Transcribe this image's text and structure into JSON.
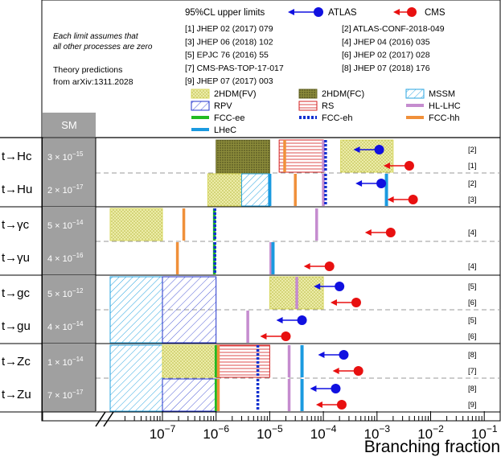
{
  "chart_data": {
    "type": "bar",
    "orientation": "horizontal",
    "x_scale": "log",
    "xlim": [
      "1e-8",
      "1e-1"
    ],
    "xlabel": "Branching fraction",
    "x_tick_labels": [
      "10^-7",
      "10^-6",
      "10^-5",
      "10^-4",
      "10^-3",
      "10^-2",
      "10^-1"
    ],
    "axis_break": true,
    "sm_header": "SM",
    "header": {
      "upper_limits_label": "95%CL upper limits",
      "atlas_label": "ATLAS",
      "cms_label": "CMS",
      "atlas_color": "#1010e0",
      "cms_color": "#e81010",
      "note_line1": "Each limit assumes that",
      "note_line2": "all other processes are zero",
      "theory_line1": "Theory predictions",
      "theory_line2": "from arXiv:1311.2028"
    },
    "references": [
      "[1] JHEP 02 (2017) 079",
      "[2] ATLAS-CONF-2018-049",
      "[3] JHEP 06 (2018) 102",
      "[4] JHEP 04 (2016) 035",
      "[5] EPJC 76 (2016) 55",
      "[6] JHEP 02 (2017) 028",
      "[7] CMS-PAS-TOP-17-017",
      "[8] JHEP 07 (2018) 176",
      "[9] JHEP 07 (2017) 003"
    ],
    "legend": [
      {
        "name": "2HDM(FV)",
        "key": "h2fv",
        "color": "#d8d860"
      },
      {
        "name": "2HDM(FC)",
        "key": "h2fc",
        "color": "#6b6b2a"
      },
      {
        "name": "MSSM",
        "key": "mssm",
        "color": "#2aa5e0"
      },
      {
        "name": "RPV",
        "key": "rpv",
        "color": "#2233cc"
      },
      {
        "name": "RS",
        "key": "rs",
        "color": "#d42020"
      },
      {
        "name": "HL-LHC",
        "key": "hllhc",
        "color": "#c58ccf"
      },
      {
        "name": "FCC-ee",
        "key": "fccee",
        "color": "#22bb22"
      },
      {
        "name": "FCC-eh",
        "key": "fcceh",
        "color": "#1030d0"
      },
      {
        "name": "FCC-hh",
        "key": "fcchh",
        "color": "#f0903a"
      },
      {
        "name": "LHeC",
        "key": "lhec",
        "color": "#1a9ae0"
      }
    ],
    "groups": [
      {
        "row_a": "t→Hc",
        "row_b": "t→Hu",
        "sm_a": "3 × 10^-15",
        "sm_b": "2 × 10^-17"
      },
      {
        "row_a": "t→γc",
        "row_b": "t→γu",
        "sm_a": "5 × 10^-14",
        "sm_b": "4 × 10^-16"
      },
      {
        "row_a": "t→gc",
        "row_b": "t→gu",
        "sm_a": "5 × 10^-12",
        "sm_b": "4 × 10^-14"
      },
      {
        "row_a": "t→Zc",
        "row_b": "t→Zu",
        "sm_a": "1 × 10^-14",
        "sm_b": "7 × 10^-17"
      }
    ],
    "theory_boxes": [
      {
        "key": "h2fc",
        "group": 0,
        "range": [
          "1e-6",
          "1e-5"
        ],
        "span": "group"
      },
      {
        "key": "h2fv",
        "group": 0,
        "range": [
          "2.1e-4",
          "2.0e-3"
        ],
        "span": "row_a"
      },
      {
        "key": "h2fv",
        "group": 0,
        "range": [
          "7e-7",
          "3e-6"
        ],
        "span": "row_b"
      },
      {
        "key": "mssm",
        "group": 0,
        "range": [
          "3e-6",
          "1e-5"
        ],
        "span": "row_b"
      },
      {
        "key": "rs",
        "group": 0,
        "range": [
          "1.5e-5",
          "1e-4"
        ],
        "span": "row_a"
      },
      {
        "key": "h2fv",
        "group": 1,
        "range": [
          "1e-8",
          "1e-7"
        ],
        "span": "row_a"
      },
      {
        "key": "mssm",
        "group": 2,
        "range": [
          "1e-8",
          "1e-7"
        ],
        "span": "group"
      },
      {
        "key": "rpv",
        "group": 2,
        "range": [
          "1e-7",
          "1e-6"
        ],
        "span": "group"
      },
      {
        "key": "h2fv",
        "group": 2,
        "range": [
          "1e-5",
          "1e-4"
        ],
        "span": "row_a"
      },
      {
        "key": "mssm",
        "group": 3,
        "range": [
          "1e-8",
          "1e-7"
        ],
        "span": "group"
      },
      {
        "key": "rpv",
        "group": 3,
        "range": [
          "1e-7",
          "1e-6"
        ],
        "span": "row_b"
      },
      {
        "key": "h2fv",
        "group": 3,
        "range": [
          "1e-7",
          "1e-6"
        ],
        "span": "row_a"
      },
      {
        "key": "rs",
        "group": 3,
        "range": [
          "1e-6",
          "1e-5"
        ],
        "span": "row_a"
      }
    ],
    "projection_lines": [
      {
        "key": "fcchh",
        "group": 0,
        "row": "a",
        "x": "1.9e-5"
      },
      {
        "key": "hllhc",
        "group": 0,
        "row": "a",
        "x": "1.0e-4"
      },
      {
        "key": "fcceh",
        "group": 0,
        "row": "a",
        "x": "1.1e-4"
      },
      {
        "key": "fcchh",
        "group": 0,
        "row": "b",
        "x": "3e-5"
      },
      {
        "key": "lhec",
        "group": 0,
        "row": "b",
        "x": "1.0e-5"
      },
      {
        "key": "hllhc",
        "group": 0,
        "row": "b",
        "x": "1.0e-4"
      },
      {
        "key": "fcceh",
        "group": 0,
        "row": "b",
        "x": "1.1e-4"
      },
      {
        "key": "lhec",
        "group": 0,
        "row": "b",
        "x": "1.5e-3"
      },
      {
        "key": "fcchh",
        "group": 1,
        "row": "a",
        "x": "2.5e-7"
      },
      {
        "key": "fccee",
        "group": 1,
        "row": "a",
        "x": "9.3e-7"
      },
      {
        "key": "fcceh",
        "group": 1,
        "row": "a",
        "x": "9.5e-7"
      },
      {
        "key": "hllhc",
        "group": 1,
        "row": "a",
        "x": "7.5e-5"
      },
      {
        "key": "fcchh",
        "group": 1,
        "row": "b",
        "x": "1.9e-7"
      },
      {
        "key": "fccee",
        "group": 1,
        "row": "b",
        "x": "9.3e-7"
      },
      {
        "key": "fcceh",
        "group": 1,
        "row": "b",
        "x": "9.5e-7"
      },
      {
        "key": "hllhc",
        "group": 1,
        "row": "b",
        "x": "1.05e-5"
      },
      {
        "key": "lhec",
        "group": 1,
        "row": "b",
        "x": "1.15e-5"
      },
      {
        "key": "hllhc",
        "group": 2,
        "row": "a",
        "x": "3.2e-5"
      },
      {
        "key": "hllhc",
        "group": 2,
        "row": "b",
        "x": "3.9e-6"
      },
      {
        "key": "fccee",
        "group": 3,
        "row": "a",
        "x": "1.0e-6"
      },
      {
        "key": "fcchh",
        "group": 3,
        "row": "a",
        "x": "1.1e-6"
      },
      {
        "key": "fcceh",
        "group": 3,
        "row": "a",
        "x": "6e-6"
      },
      {
        "key": "hllhc",
        "group": 3,
        "row": "a",
        "x": "2.3e-5"
      },
      {
        "key": "lhec",
        "group": 3,
        "row": "a",
        "x": "4e-5"
      },
      {
        "key": "fccee",
        "group": 3,
        "row": "b",
        "x": "1.0e-6"
      },
      {
        "key": "fcchh",
        "group": 3,
        "row": "b",
        "x": "1.1e-6"
      },
      {
        "key": "fcceh",
        "group": 3,
        "row": "b",
        "x": "6e-6"
      },
      {
        "key": "hllhc",
        "group": 3,
        "row": "b",
        "x": "2.3e-5"
      },
      {
        "key": "lhec",
        "group": 3,
        "row": "b",
        "x": "4e-5"
      }
    ],
    "limits": [
      {
        "experiment": "ATLAS",
        "process": "t→Hc",
        "value": "1.1e-3",
        "ref": "[2]"
      },
      {
        "experiment": "CMS",
        "process": "t→Hc",
        "value": "4.0e-3",
        "ref": "[1]"
      },
      {
        "experiment": "ATLAS",
        "process": "t→Hu",
        "value": "1.2e-3",
        "ref": "[2]"
      },
      {
        "experiment": "CMS",
        "process": "t→Hu",
        "value": "4.7e-3",
        "ref": "[3]"
      },
      {
        "experiment": "CMS",
        "process": "t→γc",
        "value": "1.8e-3",
        "ref": "[4]"
      },
      {
        "experiment": "CMS",
        "process": "t→γu",
        "value": "1.3e-4",
        "ref": "[4]"
      },
      {
        "experiment": "ATLAS",
        "process": "t→gc",
        "value": "2.0e-4",
        "ref": "[5]"
      },
      {
        "experiment": "CMS",
        "process": "t→gc",
        "value": "4.1e-4",
        "ref": "[6]"
      },
      {
        "experiment": "ATLAS",
        "process": "t→gu",
        "value": "4.0e-5",
        "ref": "[5]"
      },
      {
        "experiment": "CMS",
        "process": "t→gu",
        "value": "2.0e-5",
        "ref": "[6]"
      },
      {
        "experiment": "ATLAS",
        "process": "t→Zc",
        "value": "2.4e-4",
        "ref": "[8]"
      },
      {
        "experiment": "CMS",
        "process": "t→Zc",
        "value": "4.5e-4",
        "ref": "[7]"
      },
      {
        "experiment": "ATLAS",
        "process": "t→Zu",
        "value": "1.7e-4",
        "ref": "[8]"
      },
      {
        "experiment": "CMS",
        "process": "t→Zu",
        "value": "2.2e-4",
        "ref": "[9]"
      }
    ]
  }
}
